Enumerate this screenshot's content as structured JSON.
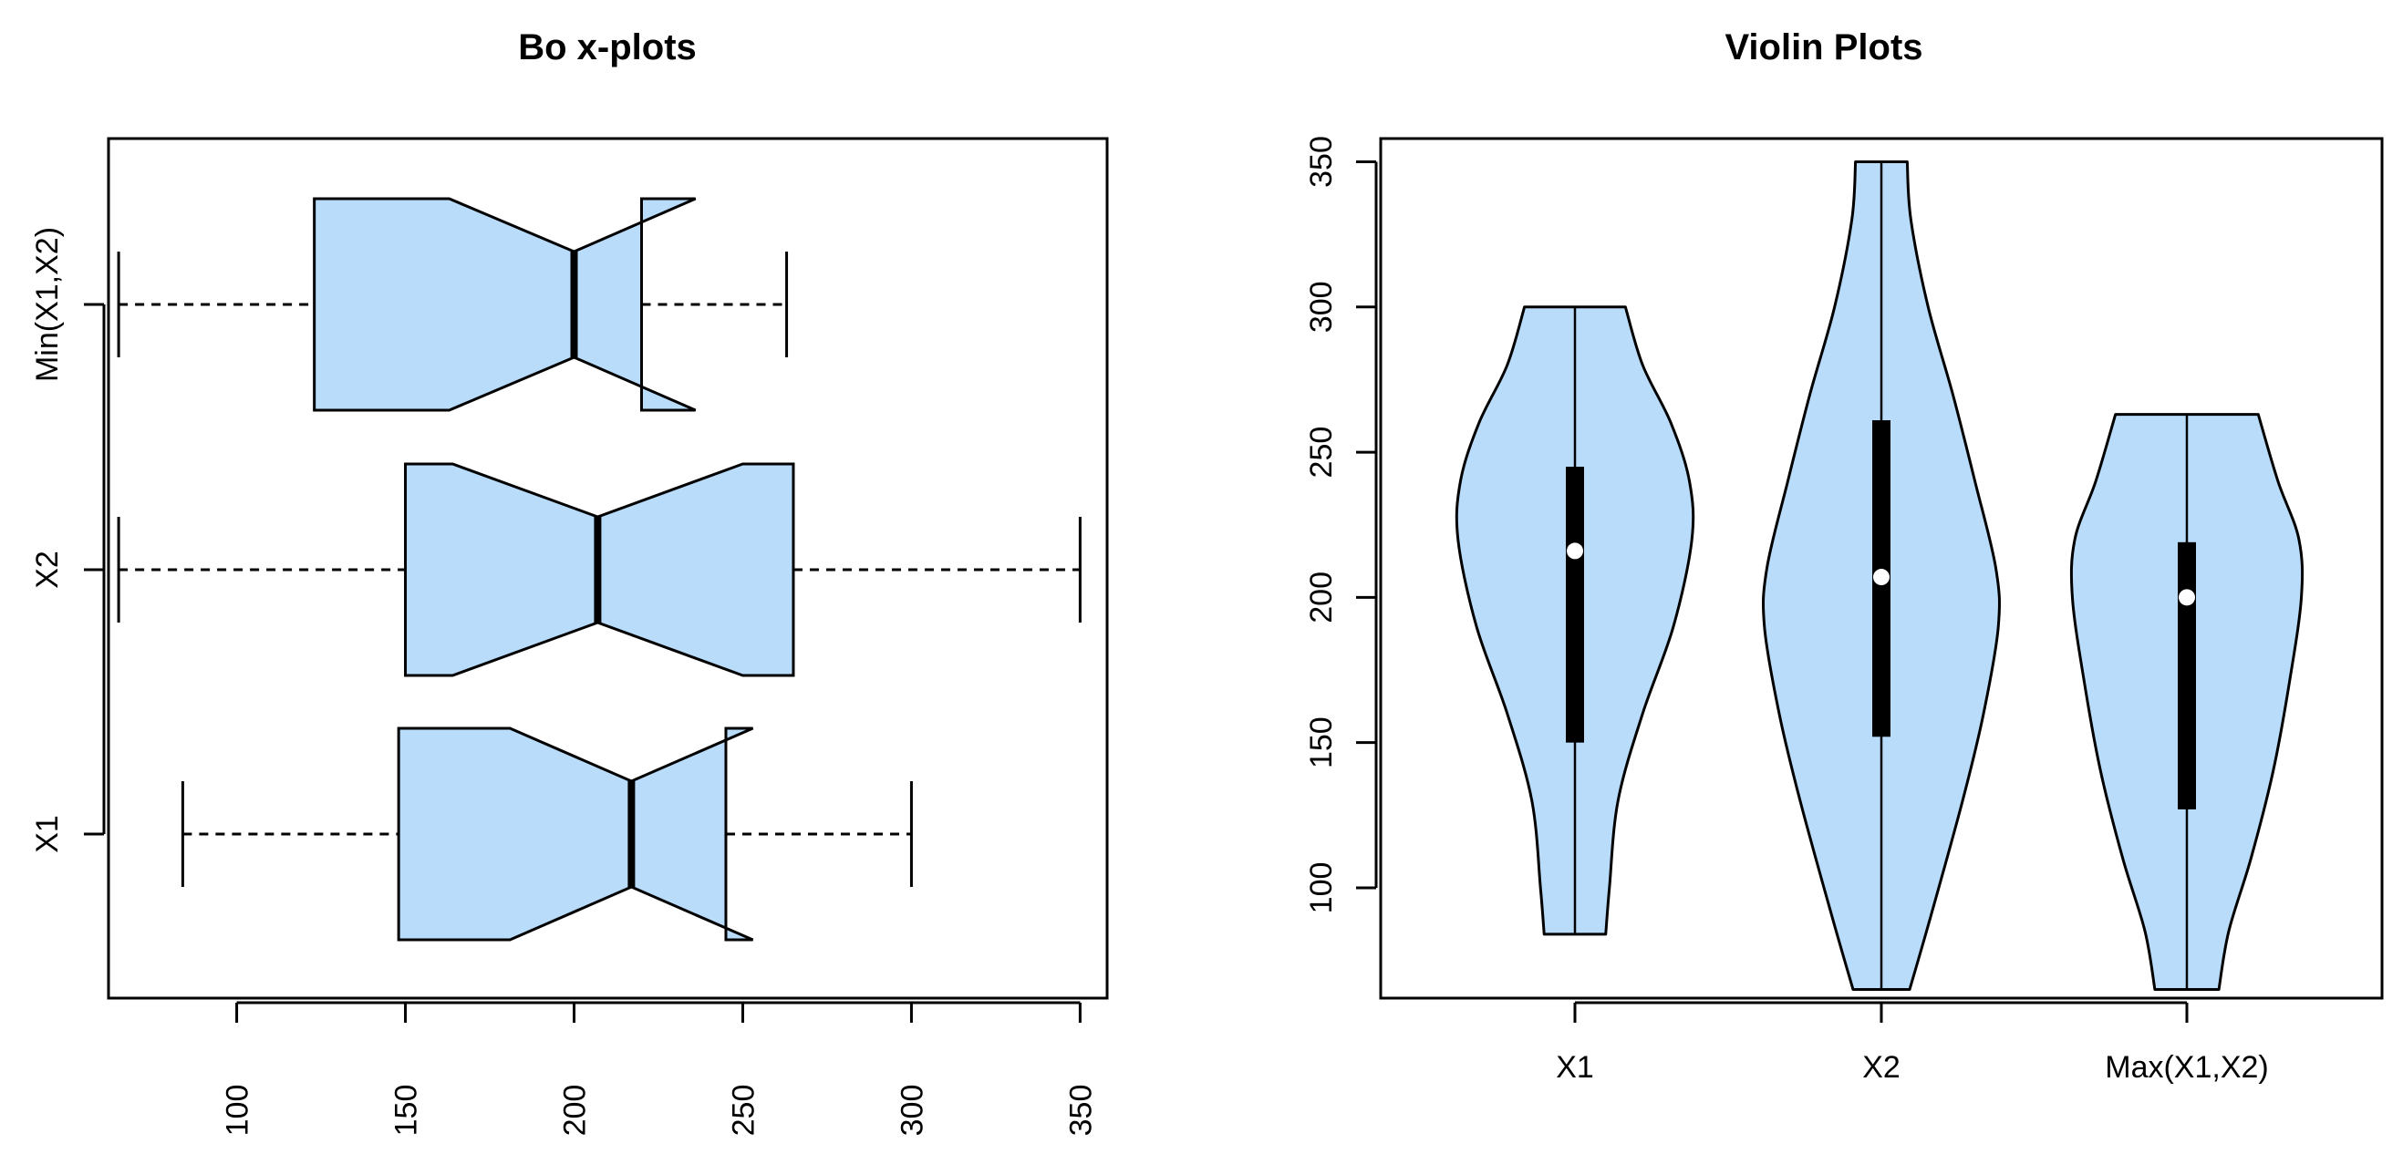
{
  "colors": {
    "fill": "#b9dcfb",
    "stroke": "#000000",
    "median_dot": "#ffffff"
  },
  "chart_data": [
    {
      "type": "boxplot",
      "title": "Bo  x-plots",
      "orientation": "horizontal",
      "notched": true,
      "xlim": [
        62,
        358
      ],
      "x_ticks": [
        "100",
        "150",
        "200",
        "250",
        "300",
        "350"
      ],
      "x_tick_values": [
        100,
        150,
        200,
        250,
        300,
        350
      ],
      "categories": [
        "X1",
        "X2",
        "Min(X1,X2)"
      ],
      "boxes": [
        {
          "label": "X1",
          "whisker_low": 84,
          "q1": 148,
          "notch_low": 181,
          "median": 217,
          "notch_high": 253,
          "q3": 245,
          "whisker_high": 300
        },
        {
          "label": "X2",
          "whisker_low": 65,
          "q1": 150,
          "notch_low": 164,
          "median": 207,
          "notch_high": 250,
          "q3": 265,
          "whisker_high": 350
        },
        {
          "label": "Min(X1,X2)",
          "whisker_low": 65,
          "q1": 123,
          "notch_low": 163,
          "median": 200,
          "notch_high": 236,
          "q3": 220,
          "whisker_high": 263
        }
      ]
    },
    {
      "type": "violin",
      "title": "Violin Plots",
      "ylim": [
        62,
        358
      ],
      "y_ticks": [
        "100",
        "150",
        "200",
        "250",
        "300",
        "350"
      ],
      "y_tick_values": [
        100,
        150,
        200,
        250,
        300,
        350
      ],
      "categories": [
        "X1",
        "X2",
        "Max(X1,X2)"
      ],
      "violins": [
        {
          "label": "X1",
          "min": 84,
          "max": 300,
          "q1": 150,
          "q3": 245,
          "median": 216,
          "density": [
            [
              84,
              0.25
            ],
            [
              100,
              0.28
            ],
            [
              130,
              0.35
            ],
            [
              160,
              0.55
            ],
            [
              190,
              0.8
            ],
            [
              220,
              0.95
            ],
            [
              240,
              0.93
            ],
            [
              260,
              0.78
            ],
            [
              280,
              0.55
            ],
            [
              300,
              0.41
            ]
          ]
        },
        {
          "label": "X2",
          "min": 65,
          "max": 350,
          "q1": 152,
          "q3": 261,
          "median": 207,
          "density": [
            [
              65,
              0.23
            ],
            [
              90,
              0.4
            ],
            [
              130,
              0.66
            ],
            [
              160,
              0.83
            ],
            [
              190,
              0.95
            ],
            [
              210,
              0.93
            ],
            [
              240,
              0.76
            ],
            [
              270,
              0.58
            ],
            [
              300,
              0.38
            ],
            [
              330,
              0.24
            ],
            [
              350,
              0.21
            ]
          ]
        },
        {
          "label": "Max(X1,X2)",
          "min": 65,
          "max": 263,
          "q1": 127,
          "q3": 219,
          "median": 200,
          "density": [
            [
              65,
              0.26
            ],
            [
              85,
              0.34
            ],
            [
              110,
              0.52
            ],
            [
              140,
              0.7
            ],
            [
              170,
              0.83
            ],
            [
              200,
              0.93
            ],
            [
              220,
              0.91
            ],
            [
              240,
              0.74
            ],
            [
              263,
              0.58
            ]
          ]
        }
      ]
    }
  ]
}
